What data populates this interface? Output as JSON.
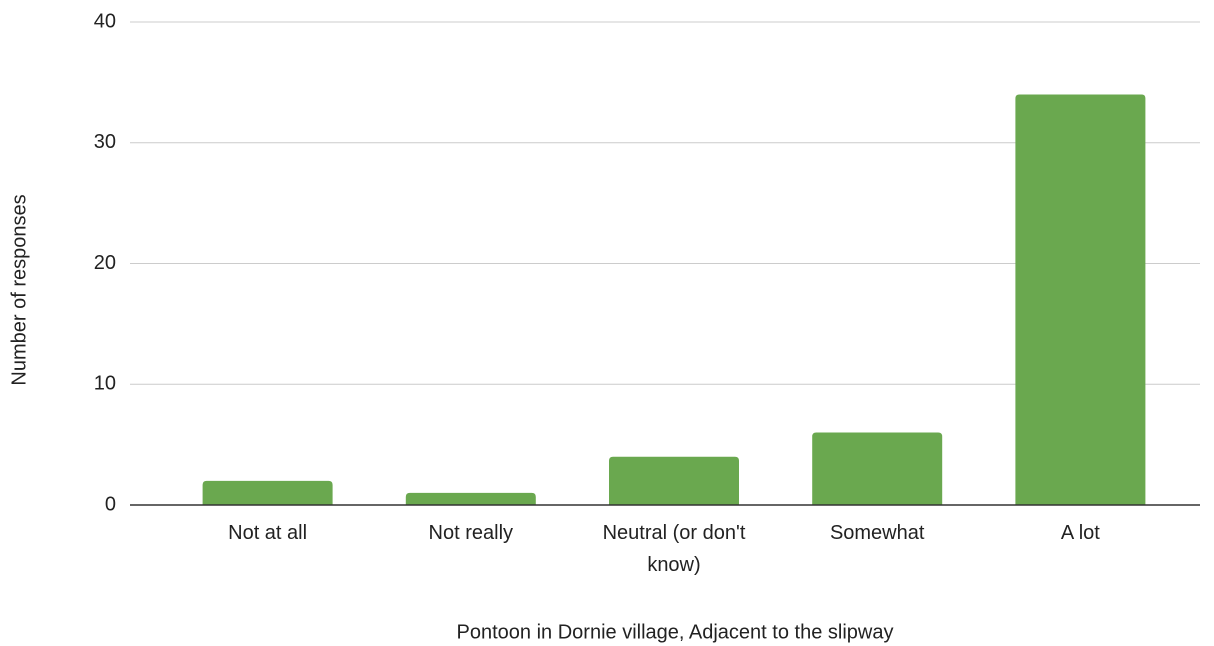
{
  "chart_data": {
    "type": "bar",
    "x_label": "Pontoon in Dornie village, Adjacent to the slipway",
    "y_label": "Number of responses",
    "categories": [
      "Not at all",
      "Not really",
      "Neutral (or don't know)",
      "Somewhat",
      "A lot"
    ],
    "values": [
      2,
      1,
      4,
      6,
      34
    ],
    "color": "#6aa84f",
    "ylim": [
      0,
      40
    ],
    "yticks": [
      0,
      10,
      20,
      30,
      40
    ],
    "grid": true
  }
}
